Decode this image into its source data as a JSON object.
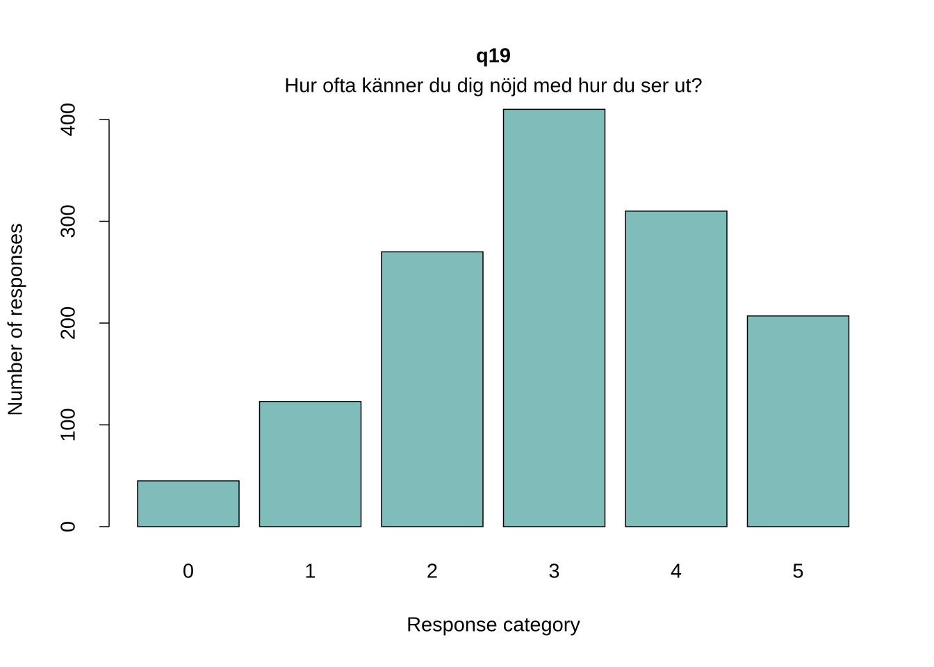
{
  "chart_data": {
    "type": "bar",
    "title": "q19",
    "subtitle": "Hur ofta känner du dig nöjd med hur du ser ut?",
    "x_label": "Response category",
    "y_label": "Number of responses",
    "categories": [
      "0",
      "1",
      "2",
      "3",
      "4",
      "5"
    ],
    "values": [
      45,
      123,
      270,
      410,
      310,
      207
    ],
    "color": "#80bdba",
    "ylim": [
      0,
      410
    ],
    "yticks": [
      0,
      100,
      200,
      300,
      400
    ],
    "grid": false
  }
}
